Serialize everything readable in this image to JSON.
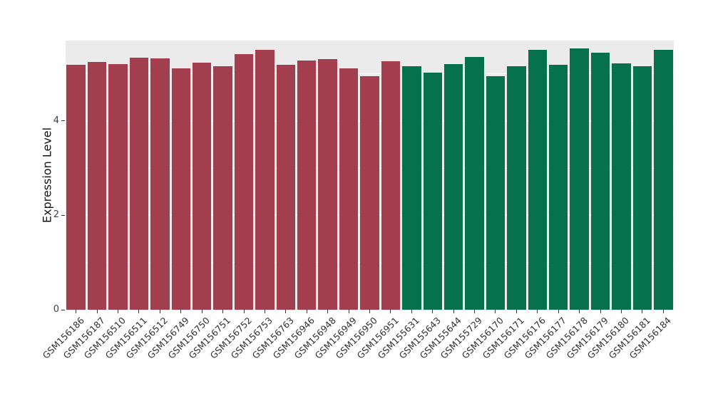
{
  "chart_data": {
    "type": "bar",
    "title": "",
    "xlabel": "",
    "ylabel": "Expression Level",
    "ylim": [
      0,
      5.7
    ],
    "yticks": [
      0,
      2,
      4
    ],
    "minor_yticks": [
      1,
      3,
      5
    ],
    "grid": true,
    "legend": false,
    "panel_background": "#EBEBEB",
    "gridline_color": "#FFFFFF",
    "categories": [
      "GSM156186",
      "GSM156187",
      "GSM156510",
      "GSM156511",
      "GSM156512",
      "GSM156749",
      "GSM156750",
      "GSM156751",
      "GSM156752",
      "GSM156753",
      "GSM156763",
      "GSM156946",
      "GSM156948",
      "GSM156949",
      "GSM156950",
      "GSM156951",
      "GSM155631",
      "GSM155643",
      "GSM155644",
      "GSM155729",
      "GSM156170",
      "GSM156171",
      "GSM156176",
      "GSM156177",
      "GSM156178",
      "GSM156179",
      "GSM156180",
      "GSM156181",
      "GSM156184"
    ],
    "values": [
      5.18,
      5.25,
      5.21,
      5.34,
      5.33,
      5.11,
      5.24,
      5.16,
      5.42,
      5.5,
      5.19,
      5.28,
      5.31,
      5.11,
      4.95,
      5.27,
      5.16,
      5.02,
      5.21,
      5.36,
      4.95,
      5.15,
      5.5,
      5.19,
      5.53,
      5.45,
      5.22,
      5.15,
      5.51
    ],
    "groups": [
      0,
      0,
      0,
      0,
      0,
      0,
      0,
      0,
      0,
      0,
      0,
      0,
      0,
      0,
      0,
      0,
      1,
      1,
      1,
      1,
      1,
      1,
      1,
      1,
      1,
      1,
      1,
      1,
      1
    ],
    "group_colors": [
      "#A23E4E",
      "#06714C"
    ]
  }
}
